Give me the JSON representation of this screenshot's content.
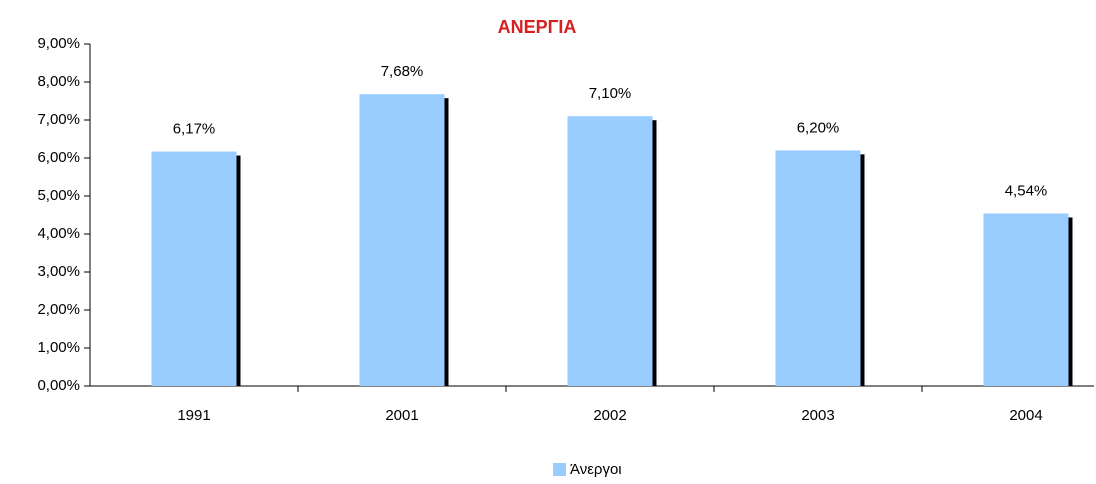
{
  "chart_data": {
    "type": "bar",
    "title": "ΑΝΕΡΓΙΑ",
    "categories": [
      "1991",
      "2001",
      "2002",
      "2003",
      "2004"
    ],
    "series": [
      {
        "name": "Άνεργοι",
        "color": "#99ccff",
        "values": [
          6.17,
          7.68,
          7.1,
          6.2,
          4.54
        ],
        "value_labels": [
          "6,17%",
          "7,68%",
          "7,10%",
          "6,20%",
          "4,54%"
        ]
      }
    ],
    "ylim": [
      0,
      9
    ],
    "yticks": [
      {
        "value": 0,
        "label": "0,00%"
      },
      {
        "value": 1,
        "label": "1,00%"
      },
      {
        "value": 2,
        "label": "2,00%"
      },
      {
        "value": 3,
        "label": "3,00%"
      },
      {
        "value": 4,
        "label": "4,00%"
      },
      {
        "value": 5,
        "label": "5,00%"
      },
      {
        "value": 6,
        "label": "6,00%"
      },
      {
        "value": 7,
        "label": "7,00%"
      },
      {
        "value": 8,
        "label": "8,00%"
      },
      {
        "value": 9,
        "label": "9,00%"
      }
    ],
    "grid": false,
    "legend": "bottom"
  }
}
